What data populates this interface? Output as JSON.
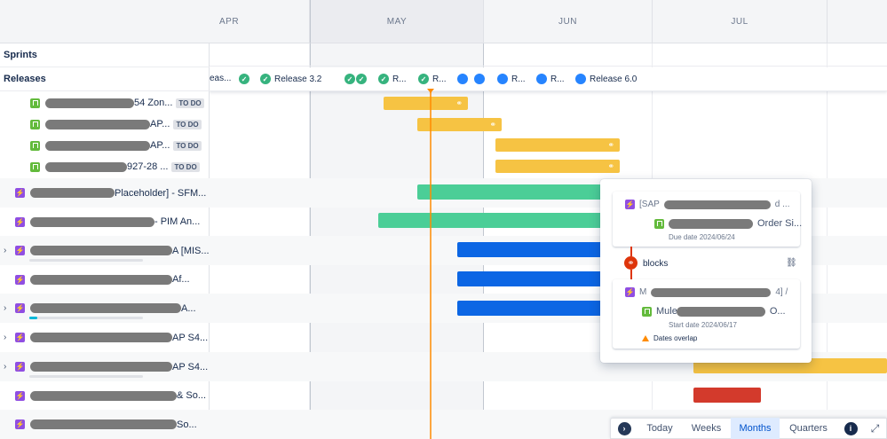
{
  "sections": {
    "sprints": "Sprints",
    "releases": "Releases"
  },
  "months": [
    "APR",
    "MAY",
    "JUN",
    "JUL"
  ],
  "release_labels": {
    "r0": "eas...",
    "r1": "Release 3.2",
    "r2": "R...",
    "r3": "R...",
    "r4": "R...",
    "r5": "R...",
    "r6": "Release 6.0"
  },
  "rows": [
    {
      "title": "54 Zon...",
      "status": "TO DO"
    },
    {
      "title": "AP...",
      "status": "TO DO"
    },
    {
      "title": "AP...",
      "status": "TO DO"
    },
    {
      "title": "927-28 ...",
      "status": "TO DO"
    },
    {
      "title": "Placeholder] - SFM..."
    },
    {
      "title": "- PIM An..."
    },
    {
      "title": "A [MIS..."
    },
    {
      "title": "Af..."
    },
    {
      "title": "A..."
    },
    {
      "title": "AP S4..."
    },
    {
      "title": "AP S4..."
    },
    {
      "title": "& So..."
    },
    {
      "title": "So..."
    }
  ],
  "progress": {
    "row7": 0,
    "row9": 0.07,
    "row11": 0
  },
  "popup": {
    "card1_title": "[SAP",
    "card1_title_end": "d ...",
    "card1_child": "Order Si...",
    "card1_due": "Due date 2024/06/24",
    "link_label": "blocks",
    "card2_title": "M",
    "card2_title_end": "4] /",
    "card2_child": "Mule",
    "card2_child_end": "O...",
    "card2_start": "Start date 2024/06/17",
    "warning": "Dates overlap"
  },
  "toolbar": {
    "today": "Today",
    "weeks": "Weeks",
    "months": "Months",
    "quarters": "Quarters"
  },
  "icons": {
    "nav": "chevron-right-icon",
    "info": "info-icon",
    "expand": "expand-icon",
    "unlink": "unlink-icon",
    "link": "link-icon"
  }
}
